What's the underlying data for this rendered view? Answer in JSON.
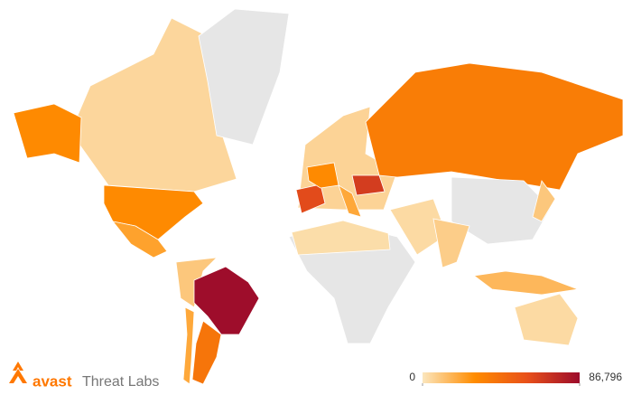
{
  "chart_data": {
    "type": "choropleth",
    "values": [
      5000,
      30000,
      22000,
      null,
      10000,
      86000,
      40000,
      20000,
      6000,
      60000,
      30000,
      66000,
      20000,
      36000,
      null,
      3000,
      null,
      4000,
      8000,
      15000,
      4000,
      10000
    ],
    "color_scale": [
      "#fbe6bd",
      "#ff8c00",
      "#e8501a",
      "#9c0b2b"
    ],
    "no_data_color": "#e6e6e6",
    "legend_ticks": [
      0,
      {
        "value": 86796,
        "label": "86,796"
      }
    ],
    "logo": {
      "brand": "avast",
      "suffix": "Threat Labs"
    }
  }
}
